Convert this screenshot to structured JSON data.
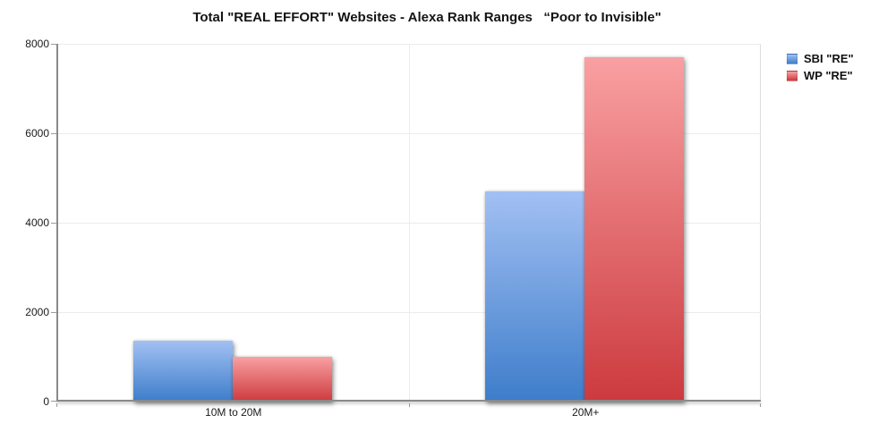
{
  "title": "Total \"REAL EFFORT\" Websites - Alexa Rank Ranges   “Poor to Invisible\"",
  "chart_data": {
    "type": "bar",
    "title": "Total \"REAL EFFORT\" Websites - Alexa Rank Ranges   “Poor to Invisible\"",
    "categories": [
      "10M to 20M",
      "20M+"
    ],
    "series": [
      {
        "name": "SBI \"RE\"",
        "values": [
          1350,
          4700
        ],
        "color_top": "#a2c0f3",
        "color_bottom": "#3e7dca"
      },
      {
        "name": "WP \"RE\"",
        "values": [
          1000,
          7700
        ],
        "color_top": "#f9a0a2",
        "color_bottom": "#cc3a3e"
      }
    ],
    "xlabel": "",
    "ylabel": "",
    "ylim": [
      0,
      8000
    ],
    "yticks": [
      0,
      2000,
      4000,
      6000,
      8000
    ],
    "grid": true,
    "legend_position": "top-right"
  }
}
